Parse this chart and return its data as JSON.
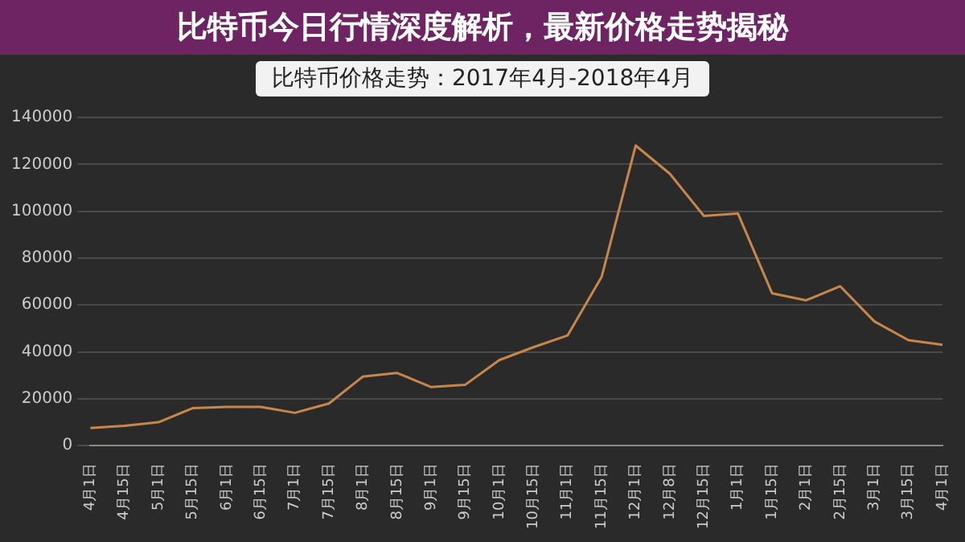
{
  "chart_data": {
    "type": "line",
    "title": "比特币价格走势：2017年4月-2018年4月",
    "annotations": [
      "比特币今日行情深度解析，最新价格走势揭秘"
    ],
    "categories": [
      "4月1日",
      "4月15日",
      "5月1日",
      "5月15日",
      "6月1日",
      "6月15日",
      "7月1日",
      "7月15日",
      "8月1日",
      "8月15日",
      "9月1日",
      "9月15日",
      "10月1日",
      "10月15日",
      "11月1日",
      "11月15日",
      "12月1日",
      "12月8日",
      "12月15日",
      "1月1日",
      "1月15日",
      "2月1日",
      "2月15日",
      "3月1日",
      "3月15日",
      "4月1日"
    ],
    "series": [
      {
        "color": "#c8874a",
        "values": [
          7500,
          8500,
          10000,
          16000,
          16500,
          16500,
          14000,
          18000,
          29500,
          31000,
          25000,
          26000,
          36500,
          42000,
          47000,
          72000,
          128000,
          116000,
          98000,
          99000,
          65000,
          62000,
          68000,
          53000,
          45000,
          43000
        ]
      }
    ],
    "ylim": [
      0,
      140000
    ],
    "yticks": [
      0,
      20000,
      40000,
      60000,
      80000,
      100000,
      120000,
      140000
    ],
    "grid": "y",
    "legend": false,
    "marker": "none",
    "line_style": "solid"
  }
}
